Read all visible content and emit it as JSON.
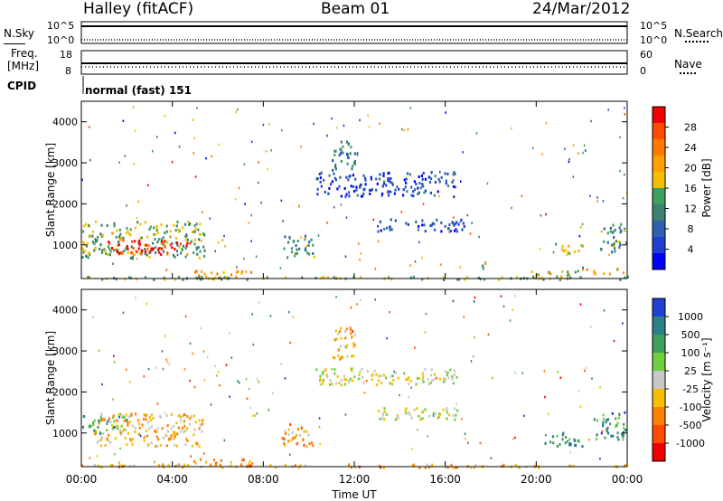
{
  "header": {
    "title_left": "Halley (fitACF)",
    "title_center": "Beam 01",
    "title_right": "24/Mar/2012"
  },
  "status_panels": {
    "nsky_label": "N.Sky",
    "nsky_ticks": [
      "10^5",
      "10^0"
    ],
    "nsearch_label": "N.Search",
    "nsearch_ticks": [
      "10^5",
      "10^0"
    ],
    "freq_label_1": "Freq.",
    "freq_label_2": "[MHz]",
    "freq_ticks": [
      "18",
      "8"
    ],
    "nave_label": "Nave",
    "nave_ticks": [
      "60",
      "0"
    ],
    "cpid_label": "CPID",
    "cpid_value": "normal (fast) 151"
  },
  "chart_data": [
    {
      "type": "heatmap",
      "name": "power",
      "ylabel": "Slant Range [km]",
      "xlabel": "Time UT",
      "xlim": [
        0,
        24
      ],
      "ylim": [
        180,
        4500
      ],
      "x_ticks": [
        "00:00",
        "04:00",
        "08:00",
        "12:00",
        "16:00",
        "20:00",
        "00:00"
      ],
      "y_ticks": [
        "1000",
        "2000",
        "3000",
        "4000"
      ],
      "colorbar_label": "Power [dB]",
      "colorbar_ticks": [
        "28",
        "24",
        "20",
        "16",
        "12",
        "8",
        "4"
      ],
      "colorbar_colors": [
        "#f00000",
        "#ff4a00",
        "#ff7a00",
        "#ffa000",
        "#f5c000",
        "#3f9f5f",
        "#3c8070",
        "#2e5fb0",
        "#1f3fd0",
        "#0000ff"
      ],
      "patches": [
        {
          "t": [
            0.0,
            5.4
          ],
          "r": [
            700,
            1600
          ],
          "lvl": 0.45
        },
        {
          "t": [
            1.0,
            4.9
          ],
          "r": [
            800,
            1150
          ],
          "lvl": 0.95
        },
        {
          "t": [
            4.9,
            7.6
          ],
          "r": [
            200,
            400
          ],
          "lvl": 0.7
        },
        {
          "t": [
            8.8,
            10.2
          ],
          "r": [
            700,
            1250
          ],
          "lvl": 0.35
        },
        {
          "t": [
            11.0,
            12.0
          ],
          "r": [
            2800,
            3600
          ],
          "lvl": 0.3
        },
        {
          "t": [
            10.3,
            16.5
          ],
          "r": [
            2200,
            2800
          ],
          "lvl": 0.15
        },
        {
          "t": [
            13.0,
            16.8
          ],
          "r": [
            1350,
            1650
          ],
          "lvl": 0.15
        },
        {
          "t": [
            17.5,
            18.0
          ],
          "r": [
            450,
            650
          ],
          "lvl": 0.5
        },
        {
          "t": [
            19.5,
            22.0
          ],
          "r": [
            200,
            400
          ],
          "lvl": 0.55
        },
        {
          "t": [
            20.8,
            22.0
          ],
          "r": [
            750,
            1050
          ],
          "lvl": 0.55
        },
        {
          "t": [
            22.0,
            23.8
          ],
          "r": [
            300,
            450
          ],
          "lvl": 0.6
        },
        {
          "t": [
            22.8,
            24.0
          ],
          "r": [
            850,
            1550
          ],
          "lvl": 0.35
        },
        {
          "t": [
            0.0,
            24.0
          ],
          "r": [
            180,
            260
          ],
          "lvl": 0.45
        }
      ]
    },
    {
      "type": "heatmap",
      "name": "velocity",
      "ylabel": "Slant Range [km]",
      "xlabel": "Time UT",
      "xlim": [
        0,
        24
      ],
      "ylim": [
        180,
        4500
      ],
      "x_ticks": [
        "00:00",
        "04:00",
        "08:00",
        "12:00",
        "16:00",
        "20:00",
        "00:00"
      ],
      "y_ticks": [
        "1000",
        "2000",
        "3000",
        "4000"
      ],
      "colorbar_label": "Velocity [m s⁻¹]",
      "colorbar_ticks": [
        "1000",
        "500",
        "100",
        "25",
        "-25",
        "-100",
        "-500",
        "-1000"
      ],
      "colorbar_colors": [
        "#1f3fd0",
        "#2e7f8a",
        "#3f9f5f",
        "#6fcf3f",
        "#c8c8c8",
        "#f5c000",
        "#ff8000",
        "#ff4a00",
        "#f00000"
      ],
      "patches": [
        {
          "t": [
            0.0,
            2.0
          ],
          "r": [
            1000,
            1500
          ],
          "lvl": 0.72
        },
        {
          "t": [
            0.5,
            5.3
          ],
          "r": [
            700,
            1500
          ],
          "lvl": 0.38
        },
        {
          "t": [
            4.9,
            7.6
          ],
          "r": [
            200,
            400
          ],
          "lvl": 0.3
        },
        {
          "t": [
            8.8,
            10.2
          ],
          "r": [
            700,
            1250
          ],
          "lvl": 0.3
        },
        {
          "t": [
            11.0,
            12.0
          ],
          "r": [
            2800,
            3600
          ],
          "lvl": 0.35
        },
        {
          "t": [
            10.3,
            16.5
          ],
          "r": [
            2200,
            2600
          ],
          "lvl": 0.5
        },
        {
          "t": [
            13.0,
            16.8
          ],
          "r": [
            1350,
            1650
          ],
          "lvl": 0.5
        },
        {
          "t": [
            20.3,
            22.0
          ],
          "r": [
            700,
            1050
          ],
          "lvl": 0.8
        },
        {
          "t": [
            22.5,
            24.0
          ],
          "r": [
            850,
            1550
          ],
          "lvl": 0.8
        },
        {
          "t": [
            0.0,
            24.0
          ],
          "r": [
            180,
            260
          ],
          "lvl": 0.35
        }
      ]
    }
  ]
}
